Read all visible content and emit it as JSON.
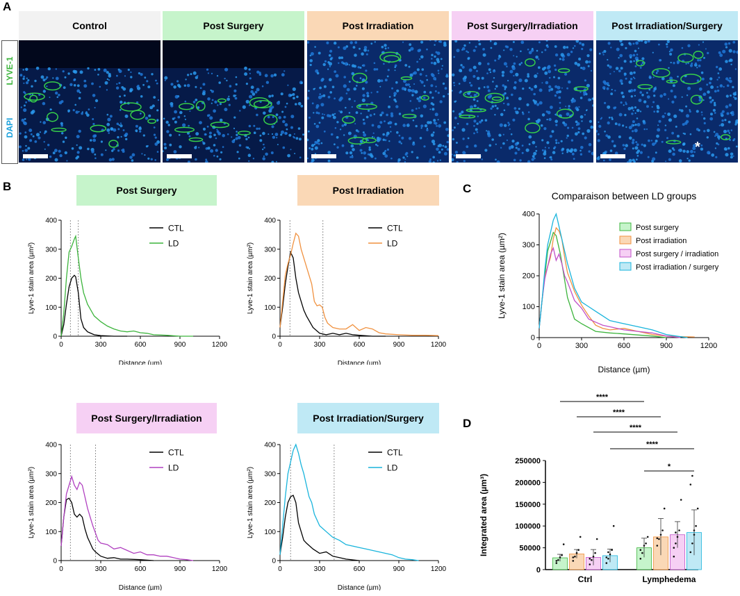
{
  "panel_labels": {
    "a": "A",
    "b": "B",
    "c": "C",
    "d": "D"
  },
  "panel_a": {
    "stain_labels": {
      "lyve": "LYVE-1",
      "dapi": "DAPI"
    },
    "groups": [
      {
        "label": "Control",
        "color": "#f2f2f2"
      },
      {
        "label": "Post Surgery",
        "color": "#c6f4cb"
      },
      {
        "label": "Post Irradiation",
        "color": "#fad8b6"
      },
      {
        "label": "Post Surgery/Irradiation",
        "color": "#f6d0f4"
      },
      {
        "label": "Post Irradiation/Surgery",
        "color": "#bfe9f5"
      }
    ],
    "asterisk": "*"
  },
  "chart_data": [
    {
      "id": "b1",
      "type": "line",
      "title": "Post Surgery",
      "title_bg": "#c6f4cb",
      "xlabel": "Distance (µm)",
      "ylabel": "Lyve-1 stain area (µm²)",
      "xlim": [
        0,
        1200
      ],
      "ylim": [
        0,
        400
      ],
      "xticks": [
        0,
        300,
        600,
        900,
        1200
      ],
      "yticks": [
        0,
        100,
        200,
        300,
        400
      ],
      "vlines": [
        70,
        130
      ],
      "series": [
        {
          "name": "CTL",
          "color": "#000000",
          "x": [
            0,
            20,
            40,
            60,
            80,
            100,
            110,
            130,
            150,
            170,
            200,
            250,
            300,
            400,
            500
          ],
          "y": [
            0,
            40,
            110,
            170,
            200,
            210,
            205,
            150,
            60,
            30,
            15,
            5,
            2,
            0,
            0
          ]
        },
        {
          "name": "LD",
          "color": "#3cb43c",
          "x": [
            0,
            20,
            40,
            60,
            80,
            100,
            110,
            130,
            150,
            170,
            200,
            250,
            300,
            350,
            400,
            450,
            500,
            550,
            600,
            650,
            700,
            800,
            900,
            1000
          ],
          "y": [
            0,
            80,
            200,
            290,
            310,
            335,
            345,
            270,
            200,
            150,
            110,
            70,
            50,
            35,
            25,
            18,
            15,
            18,
            12,
            10,
            5,
            3,
            0,
            0
          ]
        }
      ]
    },
    {
      "id": "b2",
      "type": "line",
      "title": "Post Irradiation",
      "title_bg": "#fad8b6",
      "xlabel": "Distance (µm)",
      "ylabel": "Lyve-1 stain area (µm²)",
      "xlim": [
        0,
        1200
      ],
      "ylim": [
        0,
        400
      ],
      "xticks": [
        0,
        300,
        600,
        900,
        1200
      ],
      "yticks": [
        0,
        100,
        200,
        300,
        400
      ],
      "vlines": [
        75,
        325
      ],
      "series": [
        {
          "name": "CTL",
          "color": "#000000",
          "x": [
            0,
            20,
            40,
            60,
            80,
            100,
            120,
            140,
            160,
            180,
            200,
            250,
            300,
            350,
            400,
            450,
            500,
            550,
            600,
            700,
            800
          ],
          "y": [
            30,
            100,
            180,
            240,
            290,
            270,
            200,
            150,
            120,
            90,
            70,
            30,
            10,
            5,
            10,
            5,
            10,
            5,
            3,
            0,
            0
          ]
        },
        {
          "name": "LD",
          "color": "#f0913f",
          "x": [
            0,
            20,
            40,
            60,
            80,
            100,
            120,
            140,
            160,
            180,
            200,
            220,
            240,
            260,
            280,
            300,
            320,
            340,
            360,
            400,
            450,
            500,
            550,
            600,
            650,
            700,
            750,
            800,
            900,
            1000,
            1100,
            1200
          ],
          "y": [
            30,
            120,
            210,
            250,
            280,
            320,
            355,
            345,
            300,
            270,
            240,
            210,
            180,
            120,
            105,
            108,
            100,
            65,
            45,
            30,
            25,
            25,
            40,
            20,
            30,
            25,
            12,
            8,
            5,
            3,
            3,
            2
          ]
        }
      ]
    },
    {
      "id": "b3",
      "type": "line",
      "title": "Post Surgery/Irradiation",
      "title_bg": "#f6d0f4",
      "xlabel": "Distance (µm)",
      "ylabel": "Lyve-1 stain area (µm²)",
      "xlim": [
        0,
        1200
      ],
      "ylim": [
        0,
        400
      ],
      "xticks": [
        0,
        300,
        600,
        900,
        1200
      ],
      "yticks": [
        0,
        100,
        200,
        300,
        400
      ],
      "vlines": [
        70,
        260
      ],
      "series": [
        {
          "name": "CTL",
          "color": "#000000",
          "x": [
            0,
            20,
            40,
            60,
            80,
            100,
            120,
            140,
            160,
            180,
            200,
            220,
            240,
            260,
            300,
            350,
            400,
            450,
            500,
            600,
            700
          ],
          "y": [
            50,
            150,
            210,
            215,
            200,
            160,
            150,
            160,
            150,
            110,
            80,
            60,
            40,
            30,
            15,
            8,
            10,
            5,
            5,
            3,
            0
          ]
        },
        {
          "name": "LD",
          "color": "#b040c0",
          "x": [
            0,
            20,
            40,
            60,
            80,
            100,
            120,
            140,
            160,
            180,
            200,
            220,
            240,
            260,
            280,
            300,
            350,
            400,
            450,
            500,
            550,
            600,
            650,
            700,
            750,
            800,
            850,
            900,
            950,
            1000
          ],
          "y": [
            50,
            150,
            230,
            260,
            290,
            260,
            245,
            270,
            260,
            220,
            180,
            150,
            120,
            95,
            70,
            60,
            55,
            40,
            45,
            35,
            25,
            30,
            20,
            20,
            15,
            15,
            10,
            5,
            3,
            0
          ]
        }
      ]
    },
    {
      "id": "b4",
      "type": "line",
      "title": "Post Irradiation/Surgery",
      "title_bg": "#bfe9f5",
      "xlabel": "Distance (µm)",
      "ylabel": "Lyve-1 stain area (µm²)",
      "xlim": [
        0,
        1200
      ],
      "ylim": [
        0,
        400
      ],
      "xticks": [
        0,
        300,
        600,
        900,
        1200
      ],
      "yticks": [
        0,
        100,
        200,
        300,
        400
      ],
      "vlines": [
        80,
        410
      ],
      "series": [
        {
          "name": "CTL",
          "color": "#000000",
          "x": [
            0,
            20,
            40,
            60,
            80,
            100,
            120,
            140,
            160,
            180,
            200,
            250,
            300,
            350,
            400,
            450,
            500,
            600
          ],
          "y": [
            20,
            80,
            150,
            200,
            220,
            225,
            200,
            130,
            100,
            70,
            60,
            40,
            25,
            30,
            15,
            10,
            5,
            0
          ]
        },
        {
          "name": "LD",
          "color": "#18b4dc",
          "x": [
            0,
            20,
            40,
            60,
            80,
            100,
            120,
            140,
            160,
            180,
            200,
            220,
            240,
            260,
            300,
            350,
            400,
            450,
            500,
            550,
            600,
            650,
            700,
            750,
            800,
            850,
            900,
            950,
            1000,
            1050
          ],
          "y": [
            20,
            120,
            220,
            300,
            340,
            380,
            400,
            370,
            330,
            300,
            260,
            220,
            200,
            160,
            120,
            100,
            80,
            70,
            55,
            50,
            45,
            40,
            35,
            30,
            25,
            20,
            10,
            5,
            3,
            0
          ]
        }
      ]
    },
    {
      "id": "c",
      "type": "line",
      "title": "Comparaison between LD groups",
      "xlabel": "Distance (µm)",
      "ylabel": "Lyve-1 stain area (µm²)",
      "xlim": [
        0,
        1200
      ],
      "ylim": [
        0,
        400
      ],
      "xticks": [
        0,
        300,
        600,
        900,
        1200
      ],
      "yticks": [
        0,
        100,
        200,
        300,
        400
      ],
      "series": [
        {
          "name": "Post surgery",
          "color": "#3cb43c",
          "fill": "#c6f4cb",
          "x": [
            0,
            20,
            40,
            60,
            80,
            100,
            120,
            150,
            200,
            250,
            300,
            400,
            500,
            600,
            800,
            900
          ],
          "y": [
            30,
            120,
            200,
            280,
            310,
            340,
            330,
            270,
            130,
            60,
            45,
            20,
            15,
            12,
            5,
            0
          ]
        },
        {
          "name": "Post irradiation",
          "color": "#f0913f",
          "fill": "#fad8b6",
          "x": [
            0,
            20,
            40,
            60,
            80,
            100,
            120,
            140,
            160,
            180,
            200,
            250,
            300,
            350,
            400,
            450,
            500,
            600,
            700,
            800,
            900,
            1000,
            1100
          ],
          "y": [
            30,
            120,
            200,
            230,
            260,
            320,
            355,
            345,
            320,
            260,
            210,
            150,
            105,
            70,
            40,
            30,
            25,
            30,
            20,
            10,
            5,
            3,
            2
          ]
        },
        {
          "name": "Post surgery / irradiation",
          "color": "#c050c8",
          "fill": "#f6d0f4",
          "x": [
            0,
            20,
            40,
            60,
            80,
            100,
            120,
            140,
            160,
            180,
            200,
            250,
            300,
            350,
            400,
            450,
            500,
            600,
            700,
            800,
            900,
            1000
          ],
          "y": [
            30,
            120,
            190,
            230,
            270,
            290,
            250,
            270,
            240,
            200,
            180,
            120,
            95,
            60,
            50,
            40,
            35,
            25,
            20,
            15,
            5,
            0
          ]
        },
        {
          "name": "Post irradiation / surgery",
          "color": "#18b4dc",
          "fill": "#bfe9f5",
          "x": [
            0,
            20,
            40,
            60,
            80,
            100,
            120,
            140,
            160,
            180,
            200,
            250,
            300,
            350,
            400,
            450,
            500,
            550,
            600,
            700,
            800,
            900,
            1000,
            1050
          ],
          "y": [
            30,
            120,
            220,
            300,
            340,
            380,
            400,
            360,
            320,
            280,
            240,
            160,
            115,
            100,
            85,
            70,
            55,
            50,
            45,
            35,
            25,
            10,
            3,
            0
          ]
        }
      ]
    },
    {
      "id": "d",
      "type": "bar",
      "ylabel": "Integrated area (µm³)",
      "ylim": [
        0,
        250000
      ],
      "yticks": [
        0,
        50000,
        100000,
        150000,
        200000,
        250000
      ],
      "groups": [
        "Ctrl",
        "Lymphedema"
      ],
      "series": [
        {
          "name": "Post surgery",
          "fill": "#c6f4cb",
          "color": "#3cb43c",
          "values": [
            27000,
            50000
          ],
          "err": [
            8000,
            22000
          ],
          "points": [
            [
              15000,
              22000,
              28000,
              33000,
              58000,
              20000
            ],
            [
              25000,
              38000,
              55000,
              60000,
              75000,
              45000
            ]
          ]
        },
        {
          "name": "Post irradiation",
          "fill": "#fad8b6",
          "color": "#f0913f",
          "values": [
            36000,
            75000
          ],
          "err": [
            10000,
            42000
          ],
          "points": [
            [
              20000,
              30000,
              38000,
              45000,
              75000,
              28000
            ],
            [
              55000,
              70000,
              80000,
              90000,
              140000,
              72000
            ]
          ]
        },
        {
          "name": "Post surgery / irradiation",
          "fill": "#f6d0f4",
          "color": "#c050c8",
          "values": [
            28000,
            80000
          ],
          "err": [
            18000,
            30000
          ],
          "points": [
            [
              12000,
              22000,
              30000,
              38000,
              70000,
              25000
            ],
            [
              30000,
              60000,
              75000,
              90000,
              160000,
              50000,
              85000
            ]
          ]
        },
        {
          "name": "Post irradiation / surgery",
          "fill": "#bfe9f5",
          "color": "#18b4dc",
          "values": [
            32000,
            85000
          ],
          "err": [
            15000,
            52000
          ],
          "points": [
            [
              15000,
              25000,
              35000,
              45000,
              100000,
              28000,
              40000
            ],
            [
              40000,
              60000,
              80000,
              100000,
              140000,
              195000,
              215000,
              90000
            ]
          ]
        }
      ],
      "significance": [
        {
          "label": "****",
          "from": [
            0,
            0
          ],
          "to": [
            1,
            0
          ]
        },
        {
          "label": "****",
          "from": [
            0,
            1
          ],
          "to": [
            1,
            1
          ]
        },
        {
          "label": "****",
          "from": [
            0,
            2
          ],
          "to": [
            1,
            2
          ]
        },
        {
          "label": "****",
          "from": [
            0,
            3
          ],
          "to": [
            1,
            3
          ]
        },
        {
          "label": "*",
          "from": [
            1,
            0
          ],
          "to": [
            1,
            3
          ]
        }
      ]
    }
  ]
}
